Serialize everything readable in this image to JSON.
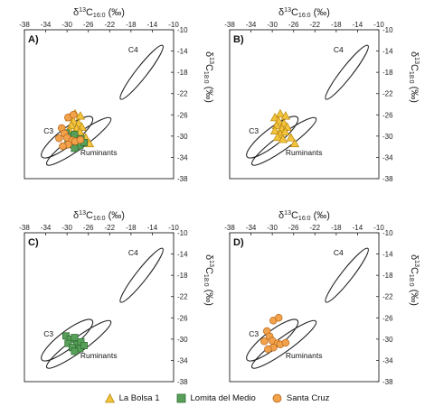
{
  "chart_data": {
    "type": "scatter",
    "legend": {
      "placement": "bottom",
      "entries": [
        {
          "name": "La Bolsa 1",
          "marker": "triangle",
          "color": "#f2c33d"
        },
        {
          "name": "Lomita del Medio",
          "marker": "square",
          "color": "#58a05a"
        },
        {
          "name": "Santa Cruz",
          "marker": "circle",
          "color": "#f2a24a"
        }
      ]
    },
    "x_axis": {
      "label_main": "δ",
      "label_sup": "13",
      "label_c": "C",
      "label_sub": "16:0",
      "label_unit": " (‰)",
      "position": "top",
      "range": [
        -38,
        -10
      ],
      "ticks": [
        "-38",
        "-34",
        "-30",
        "-26",
        "-22",
        "-18",
        "-14",
        "-10"
      ]
    },
    "y_axis": {
      "label_main": "δ",
      "label_sup": "13",
      "label_c": "C",
      "label_sub": "18:0",
      "label_unit": " (‰)",
      "position": "right",
      "range": [
        -38,
        -10
      ],
      "ticks": [
        "-10",
        "-14",
        "-18",
        "-22",
        "-26",
        "-30",
        "-34",
        "-38"
      ]
    },
    "reference_regions": [
      {
        "label": "C4",
        "type": "ellipse"
      },
      {
        "label": "C3",
        "type": "ellipse"
      },
      {
        "label": "Ruminants",
        "type": "ellipse"
      }
    ],
    "series": [
      {
        "name": "La Bolsa 1",
        "marker": "triangle",
        "color": "#f2c33d",
        "points": [
          [
            -29.5,
            -26.5
          ],
          [
            -28.5,
            -25.8
          ],
          [
            -27.5,
            -26.2
          ],
          [
            -28.8,
            -27.2
          ],
          [
            -27.8,
            -27.6
          ],
          [
            -29.2,
            -28.0
          ],
          [
            -28.2,
            -28.6
          ],
          [
            -27.2,
            -28.3
          ],
          [
            -29.5,
            -29.0
          ],
          [
            -28.5,
            -29.6
          ],
          [
            -27.6,
            -29.2
          ],
          [
            -29.0,
            -30.2
          ],
          [
            -28.0,
            -30.6
          ],
          [
            -26.5,
            -30.3
          ],
          [
            -25.8,
            -31.4
          ]
        ]
      },
      {
        "name": "Lomita del Medio",
        "marker": "square",
        "color": "#58a05a",
        "points": [
          [
            -30.2,
            -29.4
          ],
          [
            -29.4,
            -30.0
          ],
          [
            -28.6,
            -29.7
          ],
          [
            -29.8,
            -30.8
          ],
          [
            -28.2,
            -31.0
          ],
          [
            -27.4,
            -30.5
          ],
          [
            -29.0,
            -31.6
          ],
          [
            -27.6,
            -31.8
          ],
          [
            -26.8,
            -31.2
          ],
          [
            -28.6,
            -32.3
          ]
        ]
      },
      {
        "name": "Santa Cruz",
        "marker": "circle",
        "color": "#f2a24a",
        "points": [
          [
            -29.8,
            -26.5
          ],
          [
            -28.8,
            -26.0
          ],
          [
            -31.0,
            -28.5
          ],
          [
            -30.5,
            -29.5
          ],
          [
            -30.0,
            -30.3
          ],
          [
            -29.0,
            -30.8
          ],
          [
            -31.5,
            -30.4
          ],
          [
            -29.8,
            -31.6
          ],
          [
            -28.5,
            -31.0
          ],
          [
            -27.5,
            -30.7
          ],
          [
            -30.8,
            -31.9
          ]
        ]
      }
    ],
    "panels": [
      {
        "letter": "A)",
        "series": [
          "La Bolsa 1",
          "Lomita del Medio",
          "Santa Cruz"
        ]
      },
      {
        "letter": "B)",
        "series": [
          "La Bolsa 1"
        ]
      },
      {
        "letter": "C)",
        "series": [
          "Lomita del Medio"
        ]
      },
      {
        "letter": "D)",
        "series": [
          "Santa Cruz"
        ]
      }
    ]
  }
}
